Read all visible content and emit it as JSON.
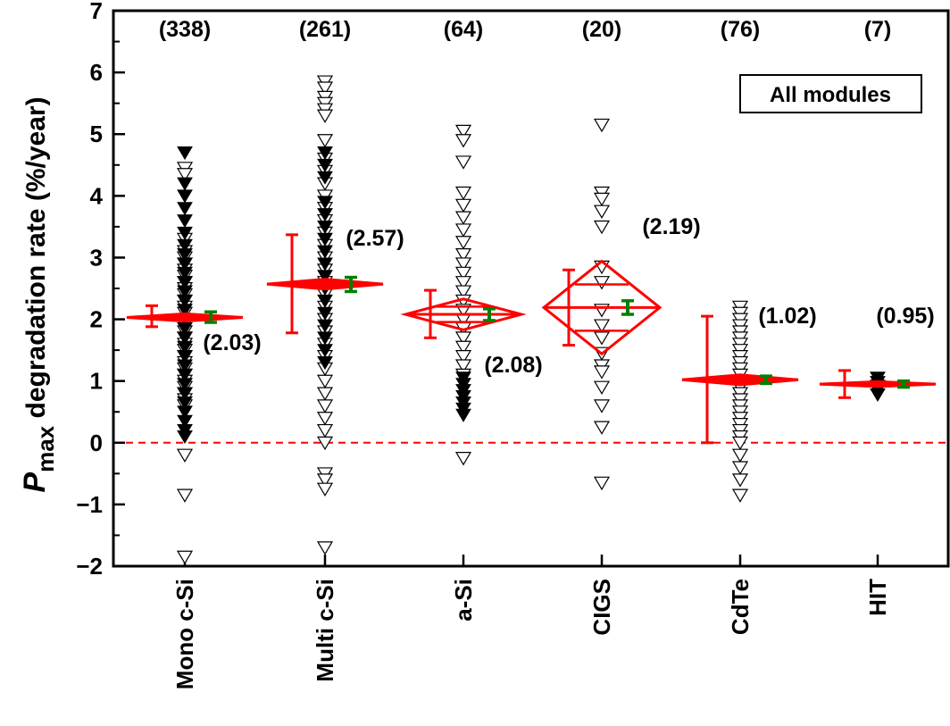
{
  "chart_data": {
    "type": "scatter",
    "ylabel_main": "P",
    "ylabel_sub": "max",
    "ylabel_rest": " degradation rate (%/year)",
    "ylim": [
      -2,
      7
    ],
    "yticks": [
      -2,
      -1,
      0,
      1,
      2,
      3,
      4,
      5,
      6,
      7
    ],
    "ytick_labels": [
      "−2",
      "−1",
      "0",
      "1",
      "2",
      "3",
      "4",
      "5",
      "6",
      "7"
    ],
    "reference_line": 0,
    "legend_box": "All modules",
    "colors": {
      "diamond": "#ff0000",
      "ci": "#008000",
      "open_marker": "#000000",
      "filled_marker": "#000000"
    },
    "categories": [
      {
        "name": "Mono c-Si",
        "count_label": "(338)",
        "mean_label": "(2.03)",
        "mean": 2.03,
        "diamond_halfheight": 0.06,
        "sd": [
          1.88,
          2.22
        ],
        "ci": [
          1.95,
          2.12
        ],
        "open_points": [
          4.45,
          4.35,
          3.3,
          3.1,
          3.0,
          2.9,
          2.8,
          2.7,
          2.6,
          2.5,
          2.4,
          2.3,
          2.2,
          2.1,
          2.0,
          1.9,
          1.8,
          1.7,
          1.6,
          1.5,
          1.4,
          1.3,
          1.2,
          1.1,
          1.0,
          0.9,
          0.8,
          0.7,
          0.6,
          -0.2,
          -0.85,
          -1.85
        ],
        "filled_points": [
          4.7,
          4.2,
          4.0,
          3.8,
          3.6,
          3.4,
          3.2,
          3.05,
          2.9,
          2.75,
          2.6,
          2.45,
          2.3,
          2.15,
          2.0,
          1.85,
          1.7,
          1.55,
          1.4,
          1.25,
          1.1,
          0.95,
          0.8,
          0.65,
          0.5,
          0.35,
          0.2,
          0.1
        ]
      },
      {
        "name": "Multi c-Si",
        "count_label": "(261)",
        "mean_label": "(2.57)",
        "mean": 2.57,
        "diamond_halfheight": 0.08,
        "sd": [
          1.78,
          3.37
        ],
        "ci": [
          2.45,
          2.68
        ],
        "open_points": [
          5.85,
          5.75,
          5.6,
          5.5,
          5.4,
          5.3,
          4.9,
          4.6,
          4.4,
          4.2,
          4.0,
          3.8,
          3.6,
          3.4,
          3.2,
          3.0,
          2.8,
          2.6,
          2.4,
          2.2,
          2.0,
          1.8,
          1.6,
          1.4,
          1.2,
          1.0,
          0.8,
          0.6,
          0.4,
          0.2,
          0.0,
          -0.5,
          -0.6,
          -0.75,
          -1.7
        ],
        "filled_points": [
          4.7,
          4.5,
          4.3,
          3.9,
          3.7,
          3.5,
          3.3,
          3.1,
          2.9,
          2.7,
          2.5,
          2.3,
          2.1,
          1.9,
          1.7,
          1.5,
          1.3
        ]
      },
      {
        "name": "a-Si",
        "count_label": "(64)",
        "mean_label": "(2.08)",
        "mean": 2.08,
        "diamond_halfheight": 0.25,
        "sd": [
          1.7,
          2.47
        ],
        "ci": [
          1.98,
          2.17
        ],
        "open_points": [
          5.05,
          4.9,
          4.55,
          4.05,
          3.85,
          3.65,
          3.45,
          3.25,
          3.05,
          2.9,
          2.75,
          2.6,
          2.45,
          2.3,
          2.15,
          2.0,
          1.85,
          1.7,
          1.55,
          1.4,
          1.25,
          1.1,
          -0.25
        ],
        "filled_points": [
          1.05,
          0.95,
          0.85,
          0.75,
          0.65,
          0.55,
          0.45
        ]
      },
      {
        "name": "CIGS",
        "count_label": "(20)",
        "mean_label": "(2.19)",
        "mean": 2.19,
        "diamond_halfheight": 0.75,
        "sd": [
          1.58,
          2.8
        ],
        "ci": [
          2.08,
          2.3
        ],
        "open_points": [
          5.15,
          4.05,
          3.95,
          3.75,
          3.5,
          2.85,
          2.6,
          2.15,
          1.9,
          1.7,
          1.45,
          1.25,
          1.15,
          0.9,
          0.6,
          0.25,
          -0.65
        ],
        "filled_points": []
      },
      {
        "name": "CdTe",
        "count_label": "(76)",
        "mean_label": "(1.02)",
        "mean": 1.02,
        "diamond_halfheight": 0.08,
        "sd": [
          0.0,
          2.05
        ],
        "ci": [
          0.96,
          1.08
        ],
        "open_points": [
          2.2,
          2.1,
          2.0,
          1.9,
          1.8,
          1.7,
          1.6,
          1.5,
          1.4,
          1.3,
          1.2,
          1.1,
          1.0,
          0.9,
          0.8,
          0.7,
          0.6,
          0.5,
          0.4,
          0.3,
          0.2,
          0.1,
          0.0,
          -0.2,
          -0.4,
          -0.6,
          -0.85
        ],
        "filled_points": []
      },
      {
        "name": "HIT",
        "count_label": "(7)",
        "mean_label": "(0.95)",
        "mean": 0.95,
        "diamond_halfheight": 0.04,
        "sd": [
          0.73,
          1.17
        ],
        "ci": [
          0.9,
          1.0
        ],
        "open_points": [],
        "filled_points": [
          1.05,
          0.98,
          0.92,
          0.85,
          0.78
        ]
      }
    ]
  }
}
